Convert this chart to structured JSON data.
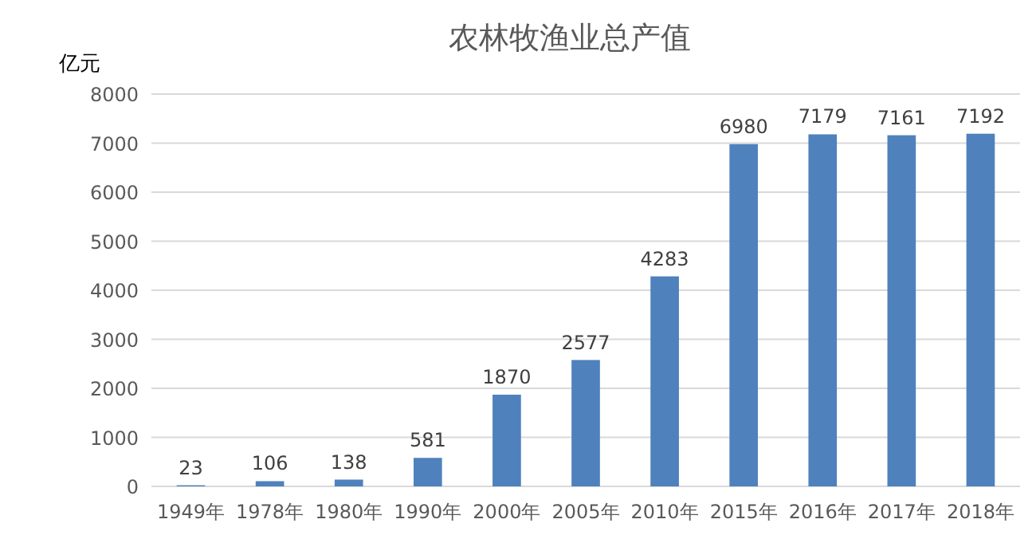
{
  "chart_data": {
    "type": "bar",
    "title": "农林牧渔业总产值",
    "ylabel": "亿元",
    "categories": [
      "1949年",
      "1978年",
      "1980年",
      "1990年",
      "2000年",
      "2005年",
      "2010年",
      "2015年",
      "2016年",
      "2017年",
      "2018年"
    ],
    "values": [
      23,
      106,
      138,
      581,
      1870,
      2577,
      4283,
      6980,
      7179,
      7161,
      7192
    ],
    "color": "#4f81bd",
    "ylim": [
      0,
      8000
    ],
    "yticks": [
      0,
      1000,
      2000,
      3000,
      4000,
      5000,
      6000,
      7000,
      8000
    ],
    "grid": "y",
    "data_labels": true
  }
}
